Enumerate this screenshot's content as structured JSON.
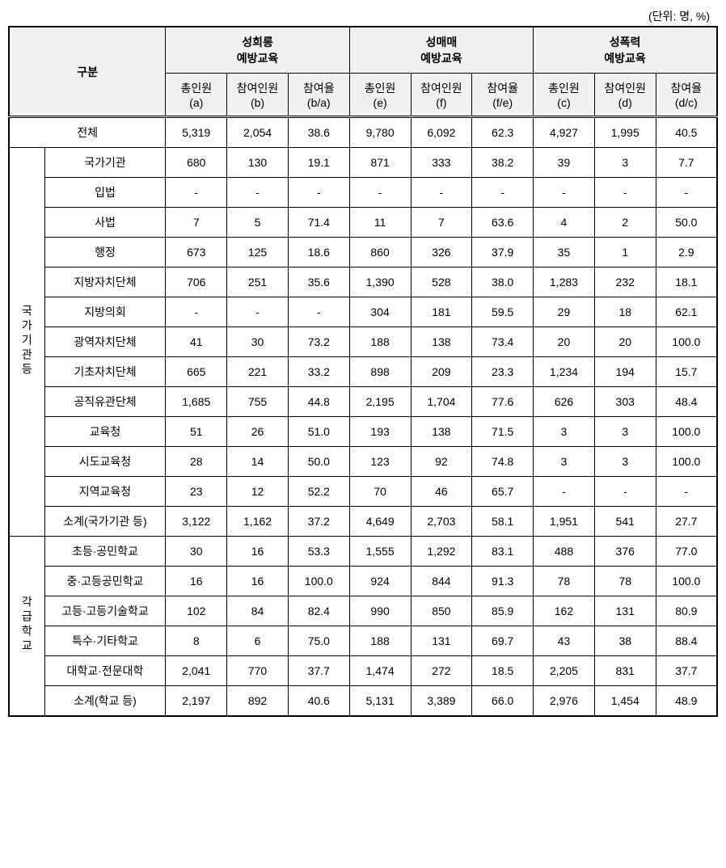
{
  "unit_label": "(단위: 명, %)",
  "header": {
    "gubun": "구분",
    "group1": "성희롱\n예방교육",
    "group2": "성매매\n예방교육",
    "group3": "성폭력\n예방교육",
    "sub": {
      "total_a": "총인원\n(a)",
      "part_b": "참여인원\n(b)",
      "rate_ba": "참여율\n(b/a)",
      "total_e": "총인원\n(e)",
      "part_f": "참여인원\n(f)",
      "rate_fe": "참여율\n(f/e)",
      "total_c": "총인원\n(c)",
      "part_d": "참여인원\n(d)",
      "rate_dc": "참여율\n(d/c)"
    }
  },
  "rows": {
    "total": {
      "label": "전체",
      "a": "5,319",
      "b": "2,054",
      "ba": "38.6",
      "e": "9,780",
      "f": "6,092",
      "fe": "62.3",
      "c": "4,927",
      "d": "1,995",
      "dc": "40.5"
    },
    "group1_label": "국가기관등",
    "g1": [
      {
        "label": "국가기관",
        "a": "680",
        "b": "130",
        "ba": "19.1",
        "e": "871",
        "f": "333",
        "fe": "38.2",
        "c": "39",
        "d": "3",
        "dc": "7.7"
      },
      {
        "label": "입법",
        "a": "-",
        "b": "-",
        "ba": "-",
        "e": "-",
        "f": "-",
        "fe": "-",
        "c": "-",
        "d": "-",
        "dc": "-"
      },
      {
        "label": "사법",
        "a": "7",
        "b": "5",
        "ba": "71.4",
        "e": "11",
        "f": "7",
        "fe": "63.6",
        "c": "4",
        "d": "2",
        "dc": "50.0"
      },
      {
        "label": "행정",
        "a": "673",
        "b": "125",
        "ba": "18.6",
        "e": "860",
        "f": "326",
        "fe": "37.9",
        "c": "35",
        "d": "1",
        "dc": "2.9"
      },
      {
        "label": "지방자치단체",
        "a": "706",
        "b": "251",
        "ba": "35.6",
        "e": "1,390",
        "f": "528",
        "fe": "38.0",
        "c": "1,283",
        "d": "232",
        "dc": "18.1"
      },
      {
        "label": "지방의회",
        "a": "-",
        "b": "-",
        "ba": "-",
        "e": "304",
        "f": "181",
        "fe": "59.5",
        "c": "29",
        "d": "18",
        "dc": "62.1"
      },
      {
        "label": "광역자치단체",
        "a": "41",
        "b": "30",
        "ba": "73.2",
        "e": "188",
        "f": "138",
        "fe": "73.4",
        "c": "20",
        "d": "20",
        "dc": "100.0"
      },
      {
        "label": "기초자치단체",
        "a": "665",
        "b": "221",
        "ba": "33.2",
        "e": "898",
        "f": "209",
        "fe": "23.3",
        "c": "1,234",
        "d": "194",
        "dc": "15.7"
      },
      {
        "label": "공직유관단체",
        "a": "1,685",
        "b": "755",
        "ba": "44.8",
        "e": "2,195",
        "f": "1,704",
        "fe": "77.6",
        "c": "626",
        "d": "303",
        "dc": "48.4"
      },
      {
        "label": "교육청",
        "a": "51",
        "b": "26",
        "ba": "51.0",
        "e": "193",
        "f": "138",
        "fe": "71.5",
        "c": "3",
        "d": "3",
        "dc": "100.0"
      },
      {
        "label": "시도교육청",
        "a": "28",
        "b": "14",
        "ba": "50.0",
        "e": "123",
        "f": "92",
        "fe": "74.8",
        "c": "3",
        "d": "3",
        "dc": "100.0"
      },
      {
        "label": "지역교육청",
        "a": "23",
        "b": "12",
        "ba": "52.2",
        "e": "70",
        "f": "46",
        "fe": "65.7",
        "c": "-",
        "d": "-",
        "dc": "-"
      },
      {
        "label": "소계(국가기관 등)",
        "a": "3,122",
        "b": "1,162",
        "ba": "37.2",
        "e": "4,649",
        "f": "2,703",
        "fe": "58.1",
        "c": "1,951",
        "d": "541",
        "dc": "27.7"
      }
    ],
    "group2_label": "각급학교",
    "g2": [
      {
        "label": "초등·공민학교",
        "a": "30",
        "b": "16",
        "ba": "53.3",
        "e": "1,555",
        "f": "1,292",
        "fe": "83.1",
        "c": "488",
        "d": "376",
        "dc": "77.0"
      },
      {
        "label": "중·고등공민학교",
        "a": "16",
        "b": "16",
        "ba": "100.0",
        "e": "924",
        "f": "844",
        "fe": "91.3",
        "c": "78",
        "d": "78",
        "dc": "100.0"
      },
      {
        "label": "고등·고등기술학교",
        "a": "102",
        "b": "84",
        "ba": "82.4",
        "e": "990",
        "f": "850",
        "fe": "85.9",
        "c": "162",
        "d": "131",
        "dc": "80.9"
      },
      {
        "label": "특수·기타학교",
        "a": "8",
        "b": "6",
        "ba": "75.0",
        "e": "188",
        "f": "131",
        "fe": "69.7",
        "c": "43",
        "d": "38",
        "dc": "88.4"
      },
      {
        "label": "대학교·전문대학",
        "a": "2,041",
        "b": "770",
        "ba": "37.7",
        "e": "1,474",
        "f": "272",
        "fe": "18.5",
        "c": "2,205",
        "d": "831",
        "dc": "37.7"
      },
      {
        "label": "소계(학교 등)",
        "a": "2,197",
        "b": "892",
        "ba": "40.6",
        "e": "5,131",
        "f": "3,389",
        "fe": "66.0",
        "c": "2,976",
        "d": "1,454",
        "dc": "48.9"
      }
    ]
  }
}
